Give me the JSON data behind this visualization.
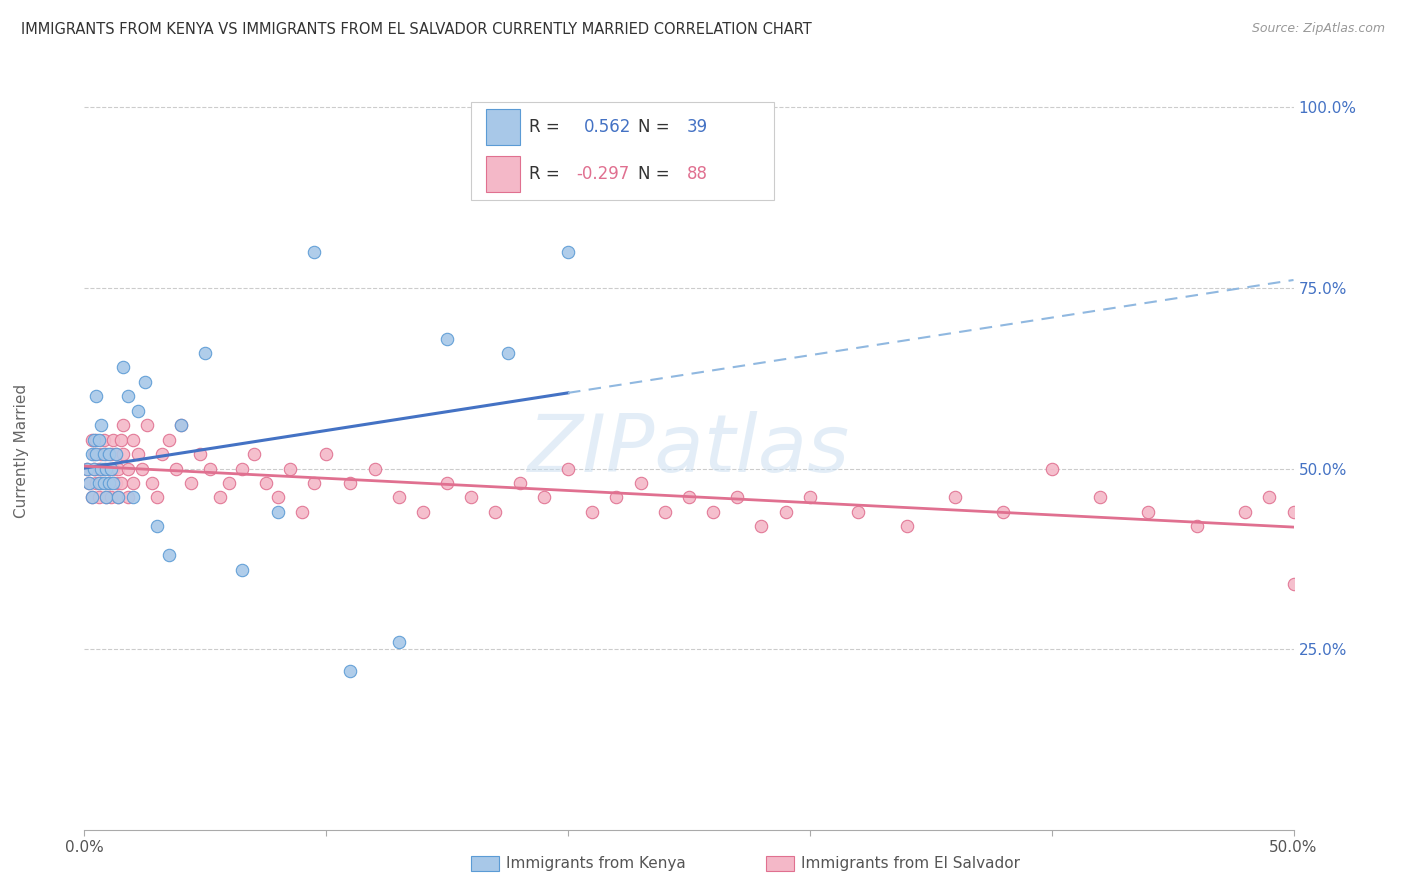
{
  "title": "IMMIGRANTS FROM KENYA VS IMMIGRANTS FROM EL SALVADOR CURRENTLY MARRIED CORRELATION CHART",
  "source": "Source: ZipAtlas.com",
  "ylabel": "Currently Married",
  "kenya_color": "#a8c8e8",
  "kenya_edge_color": "#5b9bd5",
  "el_salvador_color": "#f4b8c8",
  "el_salvador_edge_color": "#e07090",
  "trend_kenya_color": "#4472c4",
  "trend_el_salvador_color": "#e07090",
  "trend_dashed_color": "#90b8e0",
  "R_kenya": 0.562,
  "N_kenya": 39,
  "R_el_salvador": -0.297,
  "N_el_salvador": 88,
  "watermark": "ZIPatlas",
  "grid_color": "#cccccc",
  "kenya_x": [
    0.001,
    0.002,
    0.003,
    0.003,
    0.004,
    0.004,
    0.005,
    0.005,
    0.006,
    0.006,
    0.007,
    0.007,
    0.008,
    0.008,
    0.009,
    0.009,
    0.01,
    0.01,
    0.011,
    0.012,
    0.013,
    0.014,
    0.016,
    0.018,
    0.02,
    0.022,
    0.025,
    0.03,
    0.035,
    0.04,
    0.05,
    0.065,
    0.08,
    0.095,
    0.11,
    0.13,
    0.15,
    0.175,
    0.2
  ],
  "kenya_y": [
    0.5,
    0.48,
    0.52,
    0.46,
    0.5,
    0.54,
    0.52,
    0.6,
    0.48,
    0.54,
    0.5,
    0.56,
    0.48,
    0.52,
    0.5,
    0.46,
    0.52,
    0.48,
    0.5,
    0.48,
    0.52,
    0.46,
    0.64,
    0.6,
    0.46,
    0.58,
    0.62,
    0.42,
    0.38,
    0.56,
    0.66,
    0.36,
    0.44,
    0.8,
    0.22,
    0.26,
    0.68,
    0.66,
    0.8
  ],
  "el_salvador_x": [
    0.001,
    0.002,
    0.003,
    0.003,
    0.004,
    0.004,
    0.005,
    0.005,
    0.006,
    0.006,
    0.007,
    0.007,
    0.008,
    0.008,
    0.009,
    0.009,
    0.01,
    0.01,
    0.011,
    0.011,
    0.012,
    0.012,
    0.013,
    0.013,
    0.014,
    0.014,
    0.015,
    0.015,
    0.016,
    0.016,
    0.018,
    0.018,
    0.02,
    0.02,
    0.022,
    0.024,
    0.026,
    0.028,
    0.03,
    0.032,
    0.035,
    0.038,
    0.04,
    0.044,
    0.048,
    0.052,
    0.056,
    0.06,
    0.065,
    0.07,
    0.075,
    0.08,
    0.085,
    0.09,
    0.095,
    0.1,
    0.11,
    0.12,
    0.13,
    0.14,
    0.15,
    0.16,
    0.17,
    0.18,
    0.19,
    0.2,
    0.21,
    0.22,
    0.23,
    0.24,
    0.25,
    0.26,
    0.27,
    0.28,
    0.29,
    0.3,
    0.32,
    0.34,
    0.36,
    0.38,
    0.4,
    0.42,
    0.44,
    0.46,
    0.48,
    0.49,
    0.5,
    0.5
  ],
  "el_salvador_y": [
    0.5,
    0.48,
    0.54,
    0.46,
    0.52,
    0.5,
    0.48,
    0.54,
    0.5,
    0.46,
    0.52,
    0.48,
    0.5,
    0.54,
    0.46,
    0.52,
    0.5,
    0.48,
    0.52,
    0.46,
    0.5,
    0.54,
    0.48,
    0.52,
    0.5,
    0.46,
    0.54,
    0.48,
    0.52,
    0.56,
    0.5,
    0.46,
    0.54,
    0.48,
    0.52,
    0.5,
    0.56,
    0.48,
    0.46,
    0.52,
    0.54,
    0.5,
    0.56,
    0.48,
    0.52,
    0.5,
    0.46,
    0.48,
    0.5,
    0.52,
    0.48,
    0.46,
    0.5,
    0.44,
    0.48,
    0.52,
    0.48,
    0.5,
    0.46,
    0.44,
    0.48,
    0.46,
    0.44,
    0.48,
    0.46,
    0.5,
    0.44,
    0.46,
    0.48,
    0.44,
    0.46,
    0.44,
    0.46,
    0.42,
    0.44,
    0.46,
    0.44,
    0.42,
    0.46,
    0.44,
    0.5,
    0.46,
    0.44,
    0.42,
    0.44,
    0.46,
    0.44,
    0.34
  ],
  "xlim": [
    0.0,
    0.5
  ],
  "ylim": [
    0.0,
    1.05
  ],
  "ytick_vals": [
    0.25,
    0.5,
    0.75,
    1.0
  ],
  "ytick_labels": [
    "25.0%",
    "50.0%",
    "75.0%",
    "100.0%"
  ],
  "xtick_vals": [
    0.0,
    0.1,
    0.2,
    0.3,
    0.4,
    0.5
  ],
  "xtick_labels": [
    "0.0%",
    "",
    "",
    "",
    "",
    "50.0%"
  ]
}
